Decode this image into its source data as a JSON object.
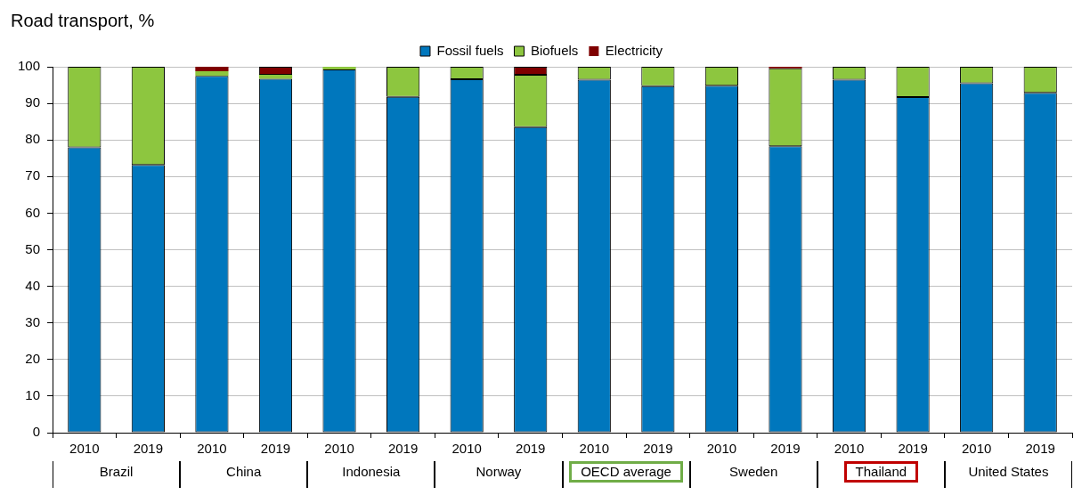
{
  "chart_data": {
    "type": "bar",
    "title": "Road transport, %",
    "stacked": true,
    "legend": "top",
    "grid": "y",
    "categories": [
      "2010",
      "2019",
      "2010",
      "2019",
      "2010",
      "2019",
      "2010",
      "2019",
      "2010",
      "2019",
      "2010",
      "2019",
      "2010",
      "2019",
      "2010",
      "2019"
    ],
    "series": [
      {
        "name": "Fossil fuels",
        "color": "#0077bd",
        "values": [
          78,
          73.2,
          97.5,
          96.7,
          99.3,
          91.8,
          96.6,
          83.5,
          96.5,
          94.7,
          94.8,
          78.3,
          96.5,
          91.7,
          95.5,
          92.9
        ]
      },
      {
        "name": "Biofuels",
        "color": "#8dc63f",
        "values": [
          22,
          26.8,
          1.3,
          1.1,
          0.7,
          8.2,
          3.4,
          14.3,
          3.5,
          5.3,
          5.2,
          21.3,
          3.5,
          8.3,
          4.5,
          7.1
        ]
      },
      {
        "name": "Electricity",
        "color": "#7f0000",
        "values": [
          0,
          0,
          1.2,
          2.2,
          0,
          0,
          0,
          2.2,
          0,
          0,
          0,
          0.4,
          0,
          0,
          0,
          0
        ]
      }
    ],
    "ylim": [
      0,
      100
    ],
    "yticks": [
      0,
      10,
      20,
      30,
      40,
      50,
      60,
      70,
      80,
      90,
      100
    ],
    "annotations": [
      "Brazil",
      "China",
      "Indonesia",
      "Norway",
      "OECD average",
      "Sweden",
      "Thailand",
      "United States"
    ]
  }
}
